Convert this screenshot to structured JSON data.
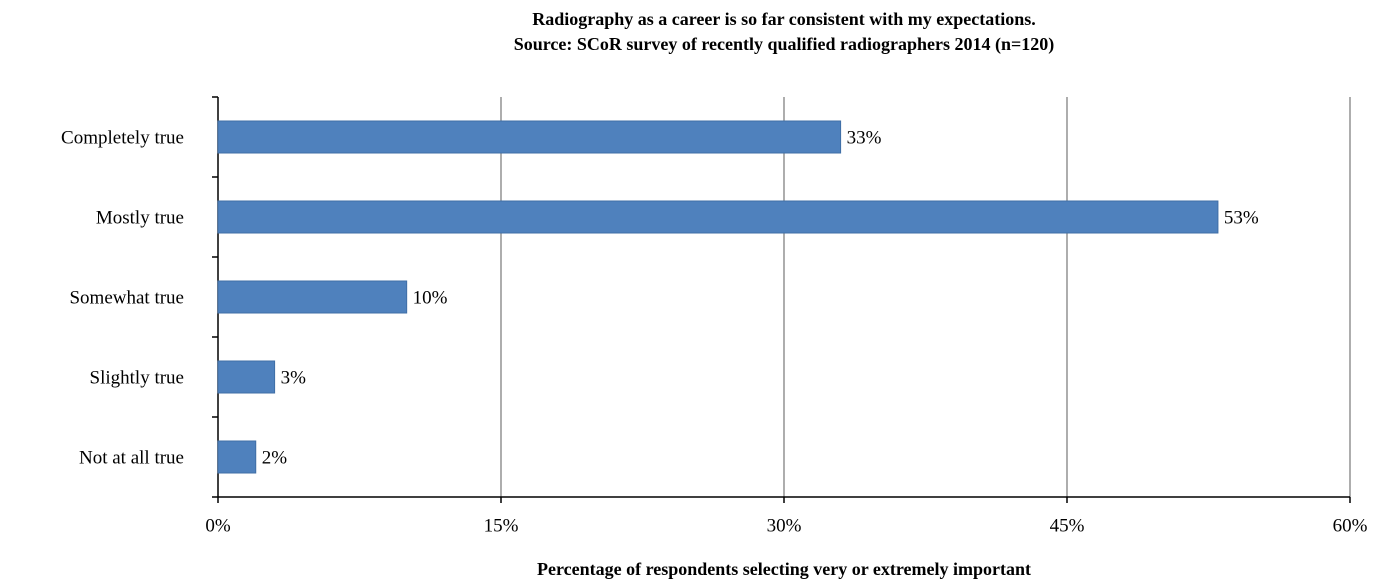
{
  "chart_data": {
    "type": "bar",
    "orientation": "horizontal",
    "title": "Radiography as a career is so far consistent with my expectations.",
    "subtitle": "Source: SCoR survey of recently qualified radiographers 2014 (n=120)",
    "x_label": "Percentage of respondents selecting very or extremely important",
    "categories": [
      "Completely true",
      "Mostly true",
      "Somewhat true",
      "Slightly true",
      "Not at all true"
    ],
    "values": [
      33,
      53,
      10,
      3,
      2
    ],
    "value_labels": [
      "33%",
      "53%",
      "10%",
      "3%",
      "2%"
    ],
    "color": "#4f81bd",
    "xlim": [
      0,
      60
    ],
    "xticks": [
      {
        "value": 0,
        "label": "0%"
      },
      {
        "value": 15,
        "label": "15%"
      },
      {
        "value": 30,
        "label": "30%"
      },
      {
        "value": 45,
        "label": "45%"
      },
      {
        "value": 60,
        "label": "60%"
      }
    ],
    "grid": true
  }
}
